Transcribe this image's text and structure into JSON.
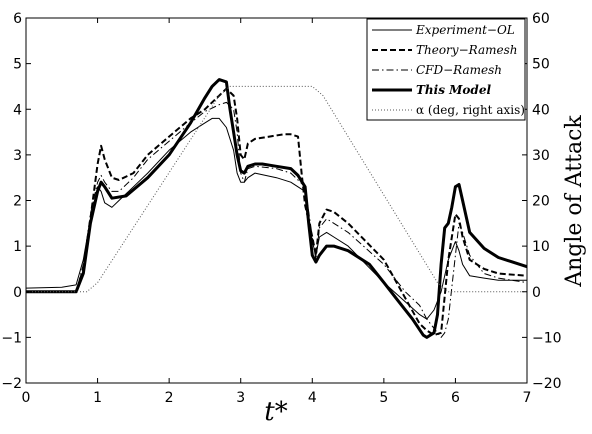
{
  "chart_data": {
    "type": "line",
    "xlabel": "t*",
    "ylabel": "",
    "y2label": "Angle of Attack",
    "xlim": [
      0,
      7
    ],
    "ylim": [
      -2,
      6
    ],
    "y2lim": [
      -20,
      60
    ],
    "xticks": [
      0,
      1,
      2,
      3,
      4,
      5,
      6,
      7
    ],
    "yticks": [
      -2,
      -1,
      0,
      1,
      2,
      3,
      4,
      5,
      6
    ],
    "y2ticks": [
      -20,
      -10,
      0,
      10,
      20,
      30,
      40,
      50,
      60
    ],
    "grid": false,
    "legend_position": "top-right",
    "series": [
      {
        "name": "Experiment−OL",
        "style": "thin-solid",
        "axis": "left",
        "x": [
          0,
          0.5,
          0.7,
          0.8,
          0.9,
          1.0,
          1.05,
          1.1,
          1.2,
          1.3,
          1.5,
          1.7,
          2.0,
          2.3,
          2.5,
          2.6,
          2.7,
          2.8,
          2.9,
          2.95,
          3.0,
          3.05,
          3.1,
          3.2,
          3.5,
          3.7,
          3.9,
          4.0,
          4.05,
          4.1,
          4.2,
          4.3,
          4.5,
          5.0,
          5.5,
          5.6,
          5.7,
          5.8,
          5.9,
          6.0,
          6.05,
          6.1,
          6.2,
          6.4,
          6.6,
          6.8,
          7.0
        ],
        "y": [
          0.08,
          0.1,
          0.15,
          0.7,
          1.6,
          2.3,
          2.2,
          1.95,
          1.85,
          2.0,
          2.3,
          2.6,
          3.1,
          3.5,
          3.7,
          3.8,
          3.8,
          3.6,
          3.1,
          2.6,
          2.4,
          2.4,
          2.5,
          2.6,
          2.5,
          2.4,
          2.2,
          1.1,
          0.8,
          1.2,
          1.3,
          1.2,
          1.0,
          0.2,
          -0.5,
          -0.6,
          -0.4,
          0.0,
          0.7,
          1.1,
          0.9,
          0.6,
          0.35,
          0.3,
          0.25,
          0.25,
          0.25
        ]
      },
      {
        "name": "Theory−Ramesh",
        "style": "dashed",
        "axis": "left",
        "x": [
          0,
          0.7,
          0.8,
          0.9,
          1.0,
          1.05,
          1.1,
          1.2,
          1.3,
          1.5,
          1.7,
          2.0,
          2.3,
          2.5,
          2.7,
          2.8,
          2.9,
          2.95,
          3.0,
          3.05,
          3.1,
          3.2,
          3.4,
          3.6,
          3.7,
          3.8,
          3.85,
          3.9,
          4.0,
          4.05,
          4.1,
          4.2,
          4.3,
          4.5,
          5.0,
          5.5,
          5.6,
          5.7,
          5.8,
          5.9,
          6.0,
          6.05,
          6.1,
          6.2,
          6.4,
          6.6,
          7.0
        ],
        "y": [
          0.0,
          0.0,
          0.5,
          1.6,
          2.8,
          3.2,
          2.9,
          2.5,
          2.45,
          2.6,
          3.0,
          3.4,
          3.8,
          4.0,
          4.3,
          4.45,
          4.3,
          3.8,
          3.0,
          2.9,
          3.25,
          3.35,
          3.4,
          3.45,
          3.45,
          3.4,
          2.6,
          1.9,
          1.2,
          0.8,
          1.5,
          1.8,
          1.75,
          1.5,
          0.7,
          -0.7,
          -0.85,
          -0.95,
          -0.9,
          0.7,
          1.7,
          1.6,
          1.2,
          0.7,
          0.5,
          0.4,
          0.35
        ]
      },
      {
        "name": "CFD−Ramesh",
        "style": "dash-dot",
        "axis": "left",
        "x": [
          0,
          0.7,
          0.8,
          0.9,
          1.0,
          1.05,
          1.1,
          1.2,
          1.3,
          1.5,
          1.7,
          2.0,
          2.3,
          2.5,
          2.7,
          2.8,
          2.9,
          2.95,
          3.0,
          3.05,
          3.1,
          3.2,
          3.5,
          3.7,
          3.9,
          4.0,
          4.05,
          4.1,
          4.2,
          4.3,
          4.5,
          5.0,
          5.3,
          5.5,
          5.6,
          5.7,
          5.8,
          5.85,
          5.9,
          6.0,
          6.05,
          6.1,
          6.2,
          6.4,
          6.6,
          7.0
        ],
        "y": [
          0.0,
          0.0,
          0.6,
          1.7,
          2.4,
          2.55,
          2.4,
          2.2,
          2.2,
          2.5,
          2.9,
          3.3,
          3.7,
          3.95,
          4.1,
          4.15,
          4.0,
          3.5,
          2.6,
          2.4,
          2.7,
          2.75,
          2.7,
          2.6,
          2.3,
          1.2,
          0.7,
          1.4,
          1.6,
          1.5,
          1.3,
          0.6,
          0.0,
          -0.3,
          -0.6,
          -0.8,
          -1.0,
          -0.9,
          -0.6,
          0.8,
          1.5,
          1.3,
          0.8,
          0.4,
          0.3,
          0.2
        ]
      },
      {
        "name": "This Model",
        "style": "thick-solid",
        "axis": "left",
        "x": [
          0,
          0.7,
          0.8,
          0.9,
          1.0,
          1.05,
          1.1,
          1.2,
          1.4,
          1.7,
          2.0,
          2.3,
          2.5,
          2.6,
          2.7,
          2.8,
          2.85,
          2.9,
          2.95,
          3.0,
          3.05,
          3.1,
          3.2,
          3.3,
          3.5,
          3.7,
          3.8,
          3.9,
          3.95,
          4.0,
          4.05,
          4.1,
          4.2,
          4.3,
          4.5,
          4.8,
          5.0,
          5.2,
          5.4,
          5.55,
          5.6,
          5.7,
          5.75,
          5.8,
          5.85,
          5.9,
          5.95,
          6.0,
          6.05,
          6.1,
          6.2,
          6.4,
          6.6,
          6.8,
          7.0
        ],
        "y": [
          0.0,
          0.0,
          0.4,
          1.5,
          2.2,
          2.4,
          2.3,
          2.05,
          2.1,
          2.5,
          3.0,
          3.7,
          4.25,
          4.5,
          4.65,
          4.6,
          4.0,
          3.5,
          3.0,
          2.65,
          2.6,
          2.75,
          2.8,
          2.8,
          2.75,
          2.7,
          2.55,
          2.3,
          1.5,
          0.8,
          0.65,
          0.8,
          1.0,
          1.0,
          0.9,
          0.6,
          0.2,
          -0.2,
          -0.6,
          -0.95,
          -1.0,
          -0.9,
          -0.5,
          0.6,
          1.4,
          1.5,
          1.85,
          2.3,
          2.35,
          2.0,
          1.3,
          0.95,
          0.75,
          0.65,
          0.55
        ]
      },
      {
        "name": "α (deg, right axis)",
        "style": "dotted",
        "axis": "right",
        "x": [
          0,
          0.85,
          1.0,
          2.7,
          2.85,
          4.0,
          4.15,
          5.75,
          5.9,
          7.0
        ],
        "y": [
          0,
          0,
          2,
          43,
          45,
          45,
          43,
          2,
          0,
          0
        ]
      }
    ]
  }
}
